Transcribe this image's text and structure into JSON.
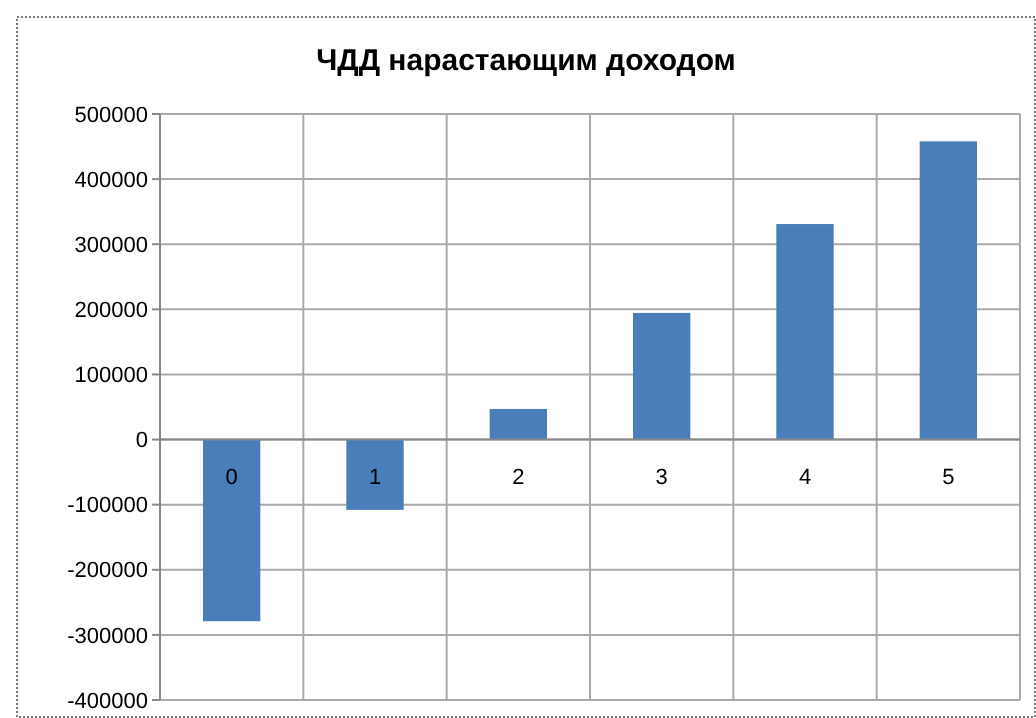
{
  "chart_data": {
    "type": "bar",
    "title": "ЧДД нарастающим доходом",
    "categories": [
      "0",
      "1",
      "2",
      "3",
      "4",
      "5"
    ],
    "values": [
      -279000,
      -108000,
      47000,
      194500,
      331000,
      458000
    ],
    "color": "#4a7ebb",
    "ylim": [
      -400000,
      500000
    ],
    "yticks": [
      -400000,
      -300000,
      -200000,
      -100000,
      0,
      100000,
      200000,
      300000,
      400000,
      500000
    ],
    "grid": true
  }
}
